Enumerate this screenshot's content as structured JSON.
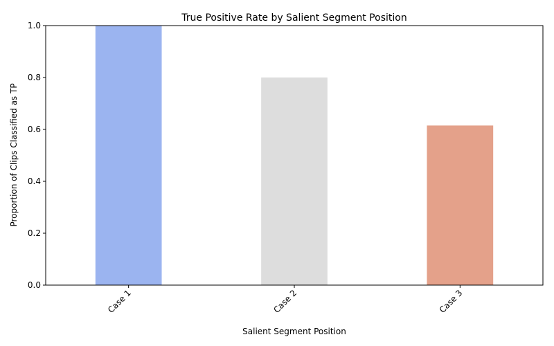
{
  "chart_data": {
    "type": "bar",
    "title": "True Positive Rate by Salient Segment Position",
    "xlabel": "Salient Segment Position",
    "ylabel": "Proportion of Clips Classified as TP",
    "categories": [
      "Case 1",
      "Case 2",
      "Case 3"
    ],
    "values": [
      1.0,
      0.8,
      0.615
    ],
    "colors": [
      "#9bb4f0",
      "#dddddd",
      "#e4a18a"
    ],
    "ylim": [
      0,
      1.0
    ],
    "yticks": [
      0.0,
      0.2,
      0.4,
      0.6,
      0.8,
      1.0
    ],
    "ytick_labels": [
      "0.0",
      "0.2",
      "0.4",
      "0.6",
      "0.8",
      "1.0"
    ],
    "xtick_rotation": 45,
    "grid": false,
    "legend": "none"
  }
}
